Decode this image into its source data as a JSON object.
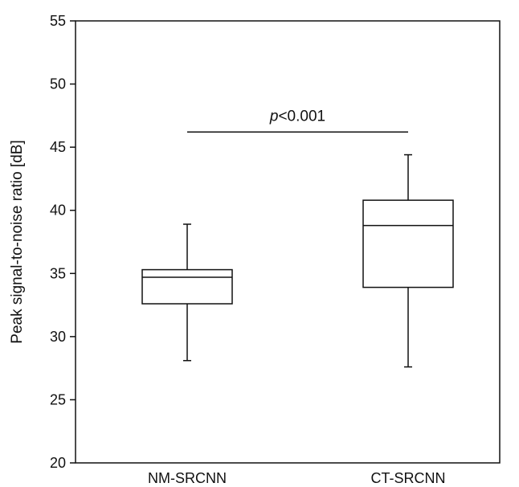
{
  "chart_data": {
    "type": "boxplot",
    "title": "",
    "xlabel": "",
    "ylabel": "Peak signal-to-noise ratio [dB]",
    "ylim": [
      20,
      55
    ],
    "yticks": [
      20,
      25,
      30,
      35,
      40,
      45,
      50,
      55
    ],
    "grid": false,
    "categories": [
      "NM-SRCNN",
      "CT-SRCNN"
    ],
    "boxes": [
      {
        "category": "NM-SRCNN",
        "whisker_low": 28.1,
        "q1": 32.6,
        "median": 34.7,
        "q3": 35.3,
        "whisker_high": 38.9
      },
      {
        "category": "CT-SRCNN",
        "whisker_low": 27.6,
        "q1": 33.9,
        "median": 38.8,
        "q3": 40.8,
        "whisker_high": 44.4
      }
    ],
    "annotation": {
      "text_prefix": "p",
      "text_suffix": "<0.001",
      "bracket_y": 46.2,
      "between": [
        "NM-SRCNN",
        "CT-SRCNN"
      ]
    }
  },
  "colors": {
    "line": "#111111",
    "box_fill": "#ffffff"
  }
}
